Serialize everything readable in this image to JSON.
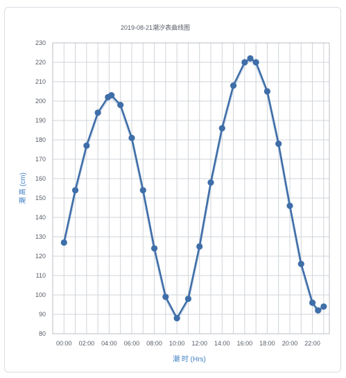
{
  "chart_data": {
    "type": "line",
    "title": "2019-08-21潮汐表曲线图",
    "xlabel": "潮 时 (Hrs)",
    "ylabel": "潮 高 (cm)",
    "x_ticks": [
      "00:00",
      "02:00",
      "04:00",
      "06:00",
      "08:00",
      "10:00",
      "12:00",
      "14:00",
      "16:00",
      "18:00",
      "20:00",
      "22:00"
    ],
    "y_ticks": [
      80,
      90,
      100,
      110,
      120,
      130,
      140,
      150,
      160,
      170,
      180,
      190,
      200,
      210,
      220,
      230
    ],
    "xlim": [
      -1,
      23.5
    ],
    "ylim": [
      80,
      230
    ],
    "grid": true,
    "series": [
      {
        "color": "#3f6ea8",
        "points": [
          {
            "x": 0,
            "y": 127
          },
          {
            "x": 1,
            "y": 154
          },
          {
            "x": 2,
            "y": 177
          },
          {
            "x": 3,
            "y": 194
          },
          {
            "x": 3.9,
            "y": 202
          },
          {
            "x": 4.2,
            "y": 203
          },
          {
            "x": 5,
            "y": 198
          },
          {
            "x": 6,
            "y": 181
          },
          {
            "x": 7,
            "y": 154
          },
          {
            "x": 8,
            "y": 124
          },
          {
            "x": 9,
            "y": 99
          },
          {
            "x": 10,
            "y": 88
          },
          {
            "x": 11,
            "y": 98
          },
          {
            "x": 12,
            "y": 125
          },
          {
            "x": 13,
            "y": 158
          },
          {
            "x": 14,
            "y": 186
          },
          {
            "x": 15,
            "y": 208
          },
          {
            "x": 16,
            "y": 220
          },
          {
            "x": 16.5,
            "y": 222
          },
          {
            "x": 17,
            "y": 220
          },
          {
            "x": 18,
            "y": 205
          },
          {
            "x": 19,
            "y": 178
          },
          {
            "x": 20,
            "y": 146
          },
          {
            "x": 21,
            "y": 116
          },
          {
            "x": 22,
            "y": 96
          },
          {
            "x": 22.5,
            "y": 92
          },
          {
            "x": 23,
            "y": 94
          }
        ]
      }
    ]
  }
}
